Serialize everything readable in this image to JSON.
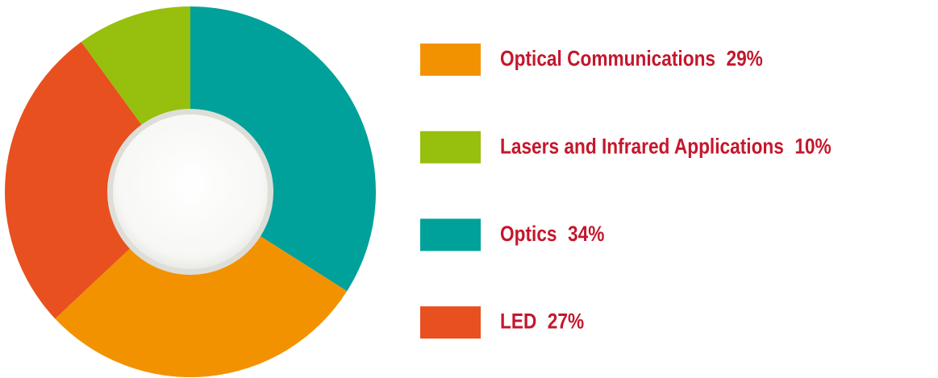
{
  "chart_data": {
    "type": "donut",
    "categories": [
      "Optics",
      "Optical Communications",
      "LED",
      "Lasers and Infrared Applications"
    ],
    "values": [
      34,
      29,
      27,
      10
    ],
    "value_labels": [
      "34%",
      "29%",
      "27%",
      "10%"
    ],
    "colors": [
      "#00a19a",
      "#f39200",
      "#e8501f",
      "#97bf0d"
    ]
  }
}
